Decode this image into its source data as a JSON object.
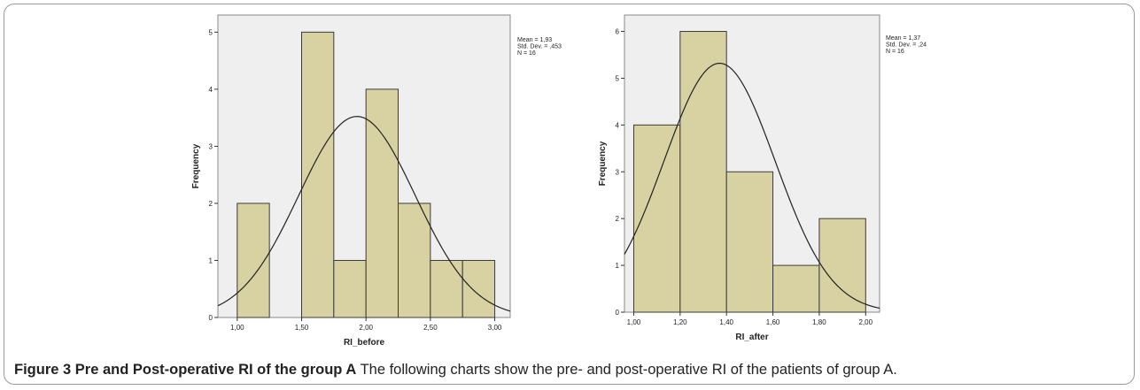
{
  "caption": {
    "label": "Figure 3 Pre and Post-operative RI of the group A",
    "text": "The following charts show the pre- and post-operative RI of the patients of group A."
  },
  "colors": {
    "bar_fill": "#d8d1a1",
    "plot_bg": "#efefef",
    "bar_stroke": "#3a3a3a",
    "curve": "#222222"
  },
  "chart_data": [
    {
      "type": "histogram",
      "xlabel": "RI_before",
      "ylabel": "Frequency",
      "bins": [
        {
          "start": 1.0,
          "end": 1.25,
          "value": 2
        },
        {
          "start": 1.5,
          "end": 1.75,
          "value": 5
        },
        {
          "start": 1.75,
          "end": 2.0,
          "value": 1
        },
        {
          "start": 2.0,
          "end": 2.25,
          "value": 4
        },
        {
          "start": 2.25,
          "end": 2.5,
          "value": 2
        },
        {
          "start": 2.5,
          "end": 2.75,
          "value": 1
        },
        {
          "start": 2.75,
          "end": 3.0,
          "value": 1
        }
      ],
      "xlim": [
        0.85,
        3.12
      ],
      "ylim": [
        0,
        5.3
      ],
      "xticks": [
        1.0,
        1.5,
        2.0,
        2.5,
        3.0
      ],
      "xtick_labels": [
        "1,00",
        "1,50",
        "2,00",
        "2,50",
        "3,00"
      ],
      "yticks": [
        0,
        1,
        2,
        3,
        4,
        5
      ],
      "ytick_labels": [
        "0",
        "1",
        "2",
        "3",
        "4",
        "5"
      ],
      "stats_lines": [
        "Mean = 1,93",
        "Std. Dev. = ,453",
        "N = 16"
      ],
      "normal_curve": {
        "mean": 1.93,
        "sd": 0.453,
        "n": 16,
        "bin_width": 0.25
      }
    },
    {
      "type": "histogram",
      "xlabel": "RI_after",
      "ylabel": "Frequency",
      "bins": [
        {
          "start": 1.0,
          "end": 1.2,
          "value": 4
        },
        {
          "start": 1.2,
          "end": 1.4,
          "value": 6
        },
        {
          "start": 1.4,
          "end": 1.6,
          "value": 3
        },
        {
          "start": 1.6,
          "end": 1.8,
          "value": 1
        },
        {
          "start": 1.8,
          "end": 2.0,
          "value": 2
        }
      ],
      "xlim": [
        0.96,
        2.06
      ],
      "ylim": [
        0,
        6.35
      ],
      "xticks": [
        1.0,
        1.2,
        1.4,
        1.6,
        1.8,
        2.0
      ],
      "xtick_labels": [
        "1,00",
        "1,20",
        "1,40",
        "1,60",
        "1,80",
        "2,00"
      ],
      "yticks": [
        0,
        1,
        2,
        3,
        4,
        5,
        6
      ],
      "ytick_labels": [
        "0",
        "1",
        "2",
        "3",
        "4",
        "5",
        "6"
      ],
      "stats_lines": [
        "Mean = 1,37",
        "Std. Dev. = ,24",
        "N = 16"
      ],
      "normal_curve": {
        "mean": 1.37,
        "sd": 0.24,
        "n": 16,
        "bin_width": 0.2
      }
    }
  ]
}
